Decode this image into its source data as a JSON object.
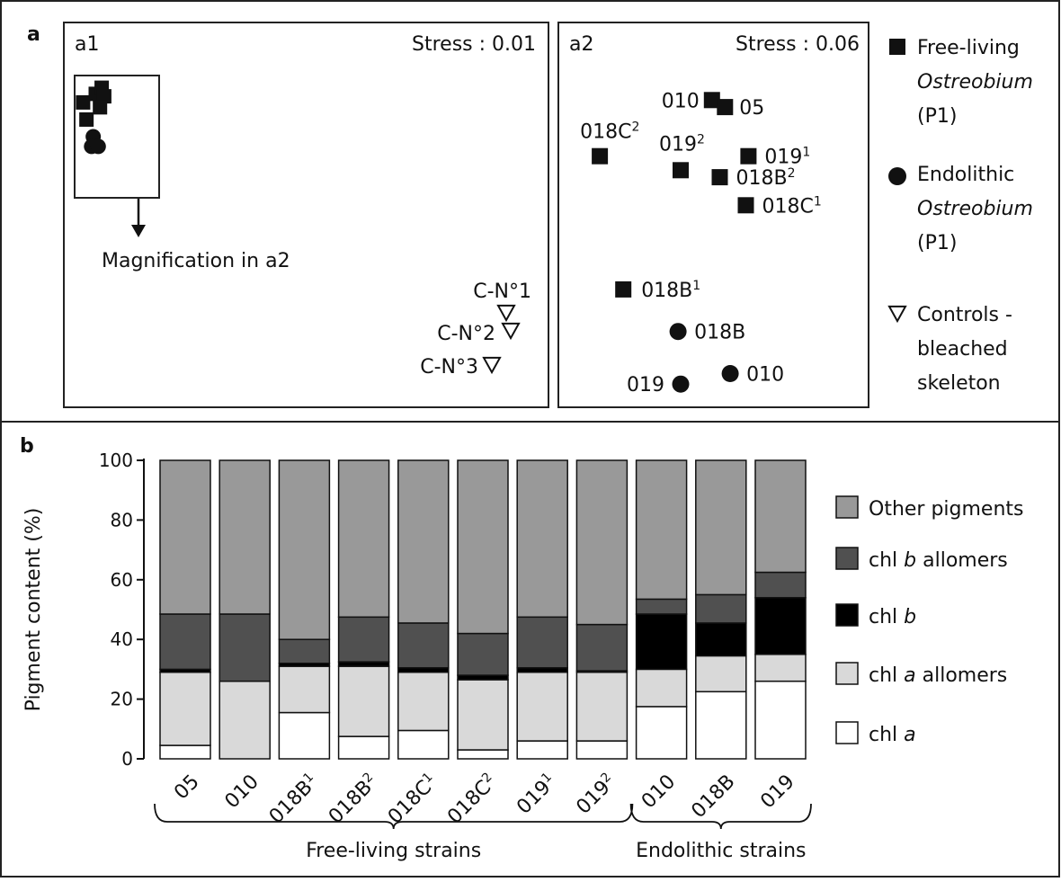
{
  "chart_data": [
    {
      "panel": "a",
      "type": "scatter",
      "subpanels": [
        {
          "id": "a1",
          "label": "a1",
          "stress": "Stress : 0.01",
          "annotation": "Magnification in a2",
          "groups": [
            {
              "group": "Free-living",
              "points": [
                [
                  0.1,
                  0.22
                ],
                [
                  0.25,
                  0.15
                ],
                [
                  0.32,
                  0.1
                ],
                [
                  0.35,
                  0.17
                ],
                [
                  0.14,
                  0.36
                ],
                [
                  0.3,
                  0.26
                ]
              ]
            },
            {
              "group": "Endolithic",
              "points": [
                [
                  0.22,
                  0.5
                ],
                [
                  0.2,
                  0.58
                ],
                [
                  0.28,
                  0.58
                ]
              ]
            },
            {
              "group": "Controls",
              "points": [
                [
                  "C-N°1",
                  0.0
                ],
                [
                  "C-N°2",
                  0.0
                ],
                [
                  "C-N°3",
                  0.0
                ]
              ]
            }
          ],
          "control_labels": [
            "C-N°1",
            "C-N°2",
            "C-N°3"
          ]
        },
        {
          "id": "a2",
          "label": "a2",
          "stress": "Stress : 0.06",
          "points": [
            {
              "name": "010",
              "sup": "",
              "group": "Free-living",
              "x": 0.52,
              "y": 0.83
            },
            {
              "name": "05",
              "sup": "",
              "group": "Free-living",
              "x": 0.57,
              "y": 0.81
            },
            {
              "name": "018C",
              "sup": "2",
              "group": "Free-living",
              "x": 0.09,
              "y": 0.67
            },
            {
              "name": "019",
              "sup": "2",
              "group": "Free-living",
              "x": 0.4,
              "y": 0.63
            },
            {
              "name": "019",
              "sup": "1",
              "group": "Free-living",
              "x": 0.66,
              "y": 0.67
            },
            {
              "name": "018B",
              "sup": "2",
              "group": "Free-living",
              "x": 0.55,
              "y": 0.61
            },
            {
              "name": "018C",
              "sup": "1",
              "group": "Free-living",
              "x": 0.65,
              "y": 0.53
            },
            {
              "name": "018B",
              "sup": "1",
              "group": "Free-living",
              "x": 0.18,
              "y": 0.29
            },
            {
              "name": "018B",
              "sup": "",
              "group": "Endolithic",
              "x": 0.39,
              "y": 0.17
            },
            {
              "name": "010",
              "sup": "",
              "group": "Endolithic",
              "x": 0.59,
              "y": 0.05
            },
            {
              "name": "019",
              "sup": "",
              "group": "Endolithic",
              "x": 0.4,
              "y": 0.02
            }
          ]
        }
      ],
      "legend": [
        {
          "shape": "square",
          "lines": [
            "Free-living",
            "Ostreobium",
            "(P1)"
          ]
        },
        {
          "shape": "circle",
          "lines": [
            "Endolithic",
            "Ostreobium",
            "(P1)"
          ]
        },
        {
          "shape": "triangle",
          "lines": [
            "Controls -",
            "bleached",
            "skeleton"
          ]
        }
      ]
    },
    {
      "panel": "b",
      "type": "bar",
      "stacked": true,
      "ylabel": "Pigment content (%)",
      "ylim": [
        0,
        100
      ],
      "yticks": [
        0,
        20,
        40,
        60,
        80,
        100
      ],
      "categories": [
        {
          "name": "05",
          "sup": ""
        },
        {
          "name": "010",
          "sup": ""
        },
        {
          "name": "018B",
          "sup": "1"
        },
        {
          "name": "018B",
          "sup": "2"
        },
        {
          "name": "018C",
          "sup": "1"
        },
        {
          "name": "018C",
          "sup": "2"
        },
        {
          "name": "019",
          "sup": "1"
        },
        {
          "name": "019",
          "sup": "2"
        },
        {
          "name": "010",
          "sup": ""
        },
        {
          "name": "018B",
          "sup": ""
        },
        {
          "name": "019",
          "sup": ""
        }
      ],
      "series": [
        {
          "key": "chl_a",
          "color": "#ffffff",
          "values": [
            4.5,
            0,
            15.5,
            7.5,
            9.5,
            3,
            6,
            6,
            17.5,
            22.5,
            26
          ]
        },
        {
          "key": "chl_a_allomers",
          "color": "#d9d9d9",
          "values": [
            24.5,
            26,
            15.5,
            23.5,
            19.5,
            23.5,
            23,
            23,
            12.5,
            12,
            9
          ]
        },
        {
          "key": "chl_b",
          "color": "#000000",
          "values": [
            1,
            0,
            1,
            1.5,
            1.5,
            1.5,
            1.5,
            0.5,
            18.5,
            11,
            19
          ]
        },
        {
          "key": "chl_b_allomers",
          "color": "#505050",
          "values": [
            18.5,
            22.5,
            8,
            15,
            15,
            14,
            17,
            15.5,
            5,
            9.5,
            8.5
          ]
        },
        {
          "key": "other",
          "color": "#999999",
          "values": [
            51.5,
            51.5,
            60,
            52.5,
            54.5,
            58,
            52.5,
            55,
            46.5,
            45,
            37.5
          ]
        }
      ],
      "legend": [
        {
          "key": "other",
          "parts": [
            [
              "Other pigments",
              false
            ]
          ]
        },
        {
          "key": "chl_b_allomers",
          "parts": [
            [
              "chl ",
              false
            ],
            [
              "b",
              true
            ],
            [
              " allomers",
              false
            ]
          ]
        },
        {
          "key": "chl_b",
          "parts": [
            [
              "chl ",
              false
            ],
            [
              "b",
              true
            ]
          ]
        },
        {
          "key": "chl_a_allomers",
          "parts": [
            [
              "chl ",
              false
            ],
            [
              "a",
              true
            ],
            [
              " allomers",
              false
            ]
          ]
        },
        {
          "key": "chl_a",
          "parts": [
            [
              "chl ",
              false
            ],
            [
              "a",
              true
            ]
          ]
        }
      ],
      "groups": [
        {
          "label": "Free-living strains",
          "from": 0,
          "to": 7
        },
        {
          "label": "Endolithic strains",
          "from": 8,
          "to": 10
        }
      ]
    }
  ],
  "panel_labels": {
    "a": "a",
    "b": "b"
  }
}
